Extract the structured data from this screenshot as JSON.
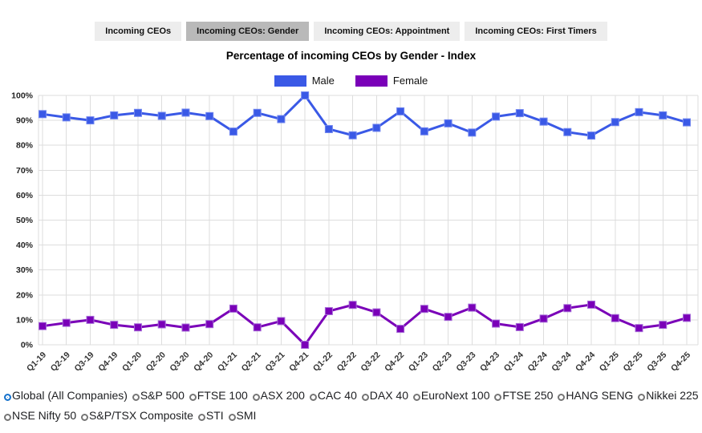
{
  "tabs": [
    {
      "label": "Incoming CEOs",
      "active": false
    },
    {
      "label": "Incoming CEOs: Gender",
      "active": true
    },
    {
      "label": "Incoming CEOs: Appointment",
      "active": false
    },
    {
      "label": "Incoming CEOs: First Timers",
      "active": false
    }
  ],
  "title": "Percentage of incoming CEOs by Gender - Index",
  "chart_data": {
    "type": "line",
    "title": "Percentage of incoming CEOs by Gender - Index",
    "categories": [
      "Q1-19",
      "Q2-19",
      "Q3-19",
      "Q4-19",
      "Q1-20",
      "Q2-20",
      "Q3-20",
      "Q4-20",
      "Q1-21",
      "Q2-21",
      "Q3-21",
      "Q4-21",
      "Q1-22",
      "Q2-22",
      "Q3-22",
      "Q4-22",
      "Q1-23",
      "Q2-23",
      "Q3-23",
      "Q4-23",
      "Q1-24",
      "Q2-24",
      "Q3-24",
      "Q4-24",
      "Q1-25",
      "Q2-25",
      "Q3-25",
      "Q4-25"
    ],
    "series": [
      {
        "name": "Male",
        "color": "#3a59e6",
        "marker_border": "#7287ef",
        "values": [
          92.5,
          91.2,
          90.0,
          92.0,
          93.0,
          91.8,
          93.1,
          91.7,
          85.5,
          93.0,
          90.5,
          100.0,
          86.5,
          84.0,
          87.0,
          93.6,
          85.6,
          88.8,
          85.1,
          91.5,
          92.9,
          89.5,
          85.3,
          83.9,
          89.3,
          93.3,
          92.0,
          89.2
        ]
      },
      {
        "name": "Female",
        "color": "#7a00b8",
        "marker_border": "#a66bd8",
        "values": [
          7.5,
          8.8,
          10.0,
          8.0,
          7.0,
          8.2,
          6.9,
          8.3,
          14.5,
          7.0,
          9.5,
          0.0,
          13.5,
          16.0,
          13.0,
          6.4,
          14.4,
          11.2,
          14.9,
          8.5,
          7.1,
          10.5,
          14.7,
          16.1,
          10.7,
          6.7,
          8.0,
          10.8
        ]
      }
    ],
    "xlabel": "",
    "ylabel": "",
    "ylim": [
      0,
      100
    ],
    "ytick_step": 10,
    "ytick_format": "percent",
    "x_label_rotation": -45,
    "grid": true,
    "grid_color": "#dddddd",
    "axis_label_color": "#222222",
    "legend_position": "top",
    "marker": "square"
  },
  "index_selector": {
    "accent_color": "#1873cc",
    "options": [
      {
        "label": "Global (All Companies)",
        "selected": true
      },
      {
        "label": "S&P 500",
        "selected": false
      },
      {
        "label": "FTSE 100",
        "selected": false
      },
      {
        "label": "ASX 200",
        "selected": false
      },
      {
        "label": "CAC 40",
        "selected": false
      },
      {
        "label": "DAX 40",
        "selected": false
      },
      {
        "label": "EuroNext 100",
        "selected": false
      },
      {
        "label": "FTSE 250",
        "selected": false
      },
      {
        "label": "HANG SENG",
        "selected": false
      },
      {
        "label": "Nikkei 225",
        "selected": false
      },
      {
        "label": "NSE Nifty 50",
        "selected": false
      },
      {
        "label": "S&P/TSX Composite",
        "selected": false
      },
      {
        "label": "STI",
        "selected": false
      },
      {
        "label": "SMI",
        "selected": false
      }
    ]
  }
}
